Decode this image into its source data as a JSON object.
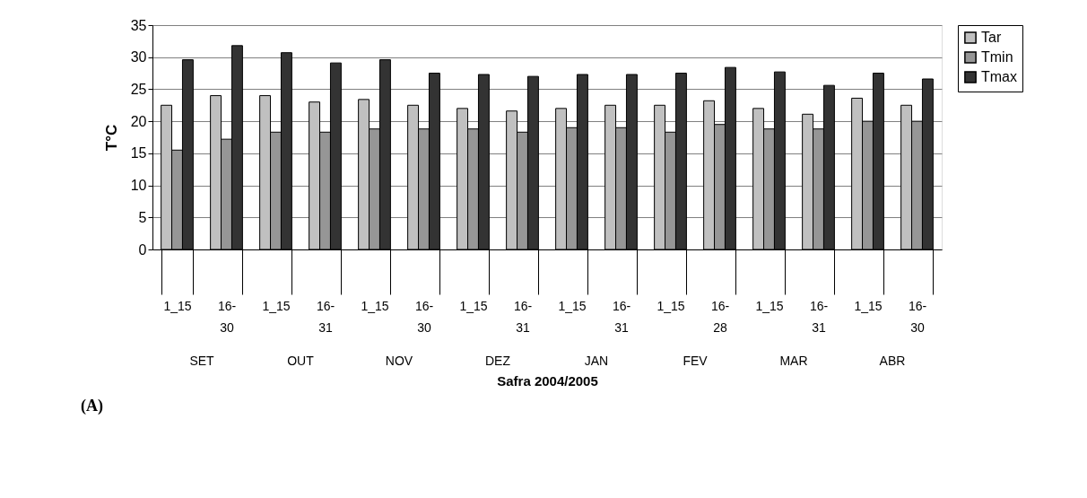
{
  "chart_data": {
    "type": "bar",
    "xlabel": "Safra 2004/2005",
    "ylabel": "T°C",
    "categories": [
      "1_15",
      "16-30",
      "1_15",
      "16-31",
      "1_15",
      "16-30",
      "1_15",
      "16-31",
      "1_15",
      "16-31",
      "1_15",
      "16-28",
      "1_15",
      "16-31",
      "1_15",
      "16-30"
    ],
    "series": [
      {
        "name": "Tar",
        "color": "#c0c0c0",
        "values": [
          22.5,
          24.0,
          24.0,
          23.0,
          23.4,
          22.5,
          22.0,
          21.6,
          22.0,
          22.5,
          22.5,
          23.2,
          22.0,
          21.1,
          23.6,
          22.5
        ]
      },
      {
        "name": "Tmin",
        "color": "#969696",
        "values": [
          15.5,
          17.2,
          18.3,
          18.3,
          18.8,
          18.8,
          18.8,
          18.3,
          19.0,
          19.0,
          18.3,
          19.5,
          18.8,
          18.8,
          20.0,
          20.0
        ]
      },
      {
        "name": "Tmax",
        "color": "#333333",
        "values": [
          29.6,
          31.8,
          30.7,
          29.1,
          29.6,
          27.5,
          27.3,
          27.0,
          27.3,
          27.3,
          27.5,
          28.4,
          27.7,
          25.6,
          27.5,
          26.6
        ]
      }
    ],
    "ylim": [
      0,
      35
    ],
    "yticks": [
      0,
      5,
      10,
      15,
      20,
      25,
      30,
      35
    ],
    "grid": "y",
    "legend": "right",
    "annotations": [
      "SET",
      "OUT",
      "NOV",
      "DEZ",
      "JAN",
      "FEV",
      "MAR",
      "ABR",
      "(A)"
    ]
  }
}
